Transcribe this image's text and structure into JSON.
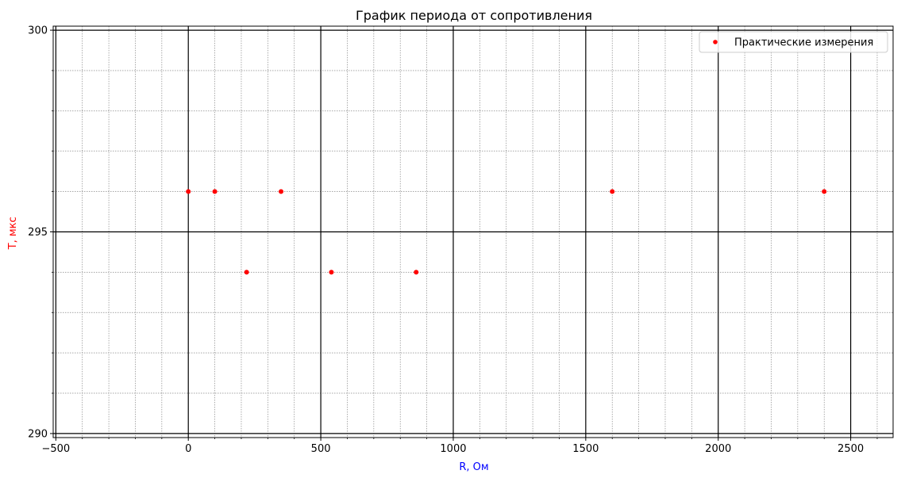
{
  "chart_data": {
    "type": "scatter",
    "title": "График периода от сопротивления",
    "xlabel": "R, Ом",
    "ylabel": "T, мкс",
    "xlabel_color": "#0000ff",
    "ylabel_color": "#ff0000",
    "xlim": [
      -510,
      2660
    ],
    "ylim": [
      289.9,
      300.1
    ],
    "xticks_major": [
      -500,
      0,
      500,
      1000,
      1500,
      2000,
      2500
    ],
    "xtick_labels": [
      "−500",
      "0",
      "500",
      "1000",
      "1500",
      "2000",
      "2500"
    ],
    "yticks_major": [
      290,
      295,
      300
    ],
    "ytick_labels": [
      "290",
      "295",
      "300"
    ],
    "x_minor_step": 100,
    "y_minor_step": 1,
    "grid": {
      "major": true,
      "minor": true,
      "major_color": "#000000",
      "minor_color": "#888888"
    },
    "legend_placement": "top-right",
    "series": [
      {
        "name": "Практические измерения",
        "color": "#ff0000",
        "x": [
          0,
          100,
          350,
          1600,
          2400,
          220,
          540,
          860
        ],
        "y": [
          296,
          296,
          296,
          296,
          296,
          294,
          294,
          294
        ]
      }
    ]
  }
}
